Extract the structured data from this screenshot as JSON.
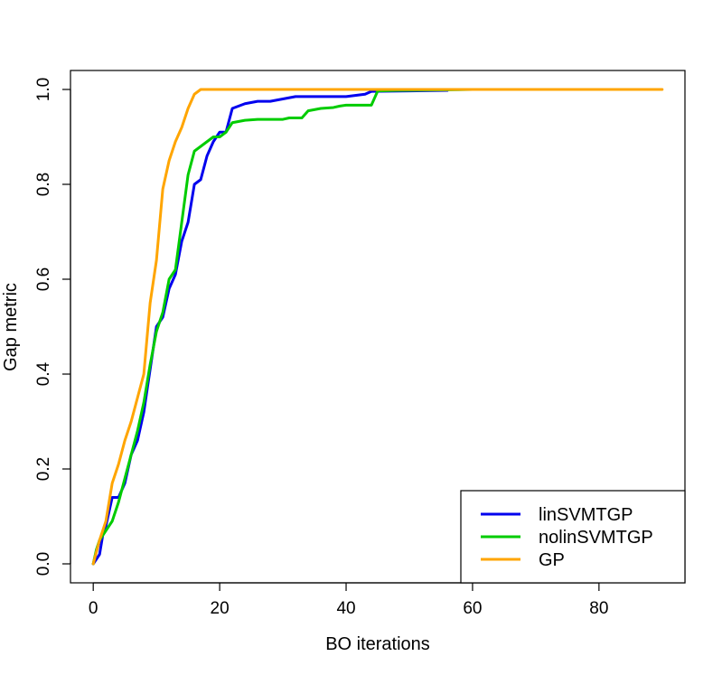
{
  "chart_data": {
    "type": "line",
    "title": "",
    "xlabel": "BO iterations",
    "ylabel": "Gap metric",
    "xlim": [
      -3.6,
      93.6
    ],
    "ylim": [
      -0.04,
      1.04
    ],
    "xticks": [
      0,
      20,
      40,
      60,
      80
    ],
    "yticks": [
      0.0,
      0.2,
      0.4,
      0.6,
      0.8,
      1.0
    ],
    "xtick_labels": [
      "0",
      "20",
      "40",
      "60",
      "80"
    ],
    "ytick_labels": [
      "0.0",
      "0.2",
      "0.4",
      "0.6",
      "0.8",
      "1.0"
    ],
    "grid": false,
    "legend_position": "bottom-right",
    "series": [
      {
        "name": "linSVMTGP",
        "color": "#0000ee",
        "points": [
          [
            0,
            0
          ],
          [
            1,
            0.02
          ],
          [
            1.5,
            0.06
          ],
          [
            2,
            0.08
          ],
          [
            3,
            0.14
          ],
          [
            4,
            0.14
          ],
          [
            5,
            0.17
          ],
          [
            6,
            0.23
          ],
          [
            7,
            0.26
          ],
          [
            8,
            0.32
          ],
          [
            9,
            0.41
          ],
          [
            10,
            0.5
          ],
          [
            11,
            0.52
          ],
          [
            12,
            0.58
          ],
          [
            13,
            0.61
          ],
          [
            14,
            0.68
          ],
          [
            15,
            0.72
          ],
          [
            16,
            0.8
          ],
          [
            17,
            0.81
          ],
          [
            18,
            0.86
          ],
          [
            19,
            0.89
          ],
          [
            20,
            0.91
          ],
          [
            21,
            0.91
          ],
          [
            22,
            0.96
          ],
          [
            23,
            0.965
          ],
          [
            24,
            0.97
          ],
          [
            26,
            0.975
          ],
          [
            28,
            0.975
          ],
          [
            30,
            0.98
          ],
          [
            32,
            0.985
          ],
          [
            34,
            0.985
          ],
          [
            40,
            0.985
          ],
          [
            43,
            0.99
          ],
          [
            44,
            0.996
          ],
          [
            50,
            0.997
          ],
          [
            56,
            0.998
          ]
        ]
      },
      {
        "name": "nolinSVMTGP",
        "color": "#00cc00",
        "points": [
          [
            0,
            0
          ],
          [
            0.5,
            0.03
          ],
          [
            1,
            0.05
          ],
          [
            2,
            0.07
          ],
          [
            3,
            0.09
          ],
          [
            4,
            0.13
          ],
          [
            5,
            0.18
          ],
          [
            6,
            0.23
          ],
          [
            7,
            0.28
          ],
          [
            8,
            0.34
          ],
          [
            9,
            0.42
          ],
          [
            10,
            0.49
          ],
          [
            11,
            0.53
          ],
          [
            12,
            0.6
          ],
          [
            13,
            0.62
          ],
          [
            14,
            0.72
          ],
          [
            15,
            0.82
          ],
          [
            16,
            0.87
          ],
          [
            17,
            0.88
          ],
          [
            18,
            0.89
          ],
          [
            19,
            0.9
          ],
          [
            20,
            0.9
          ],
          [
            21,
            0.91
          ],
          [
            22,
            0.93
          ],
          [
            24,
            0.935
          ],
          [
            26,
            0.937
          ],
          [
            28,
            0.937
          ],
          [
            30,
            0.937
          ],
          [
            31,
            0.94
          ],
          [
            33,
            0.94
          ],
          [
            34,
            0.955
          ],
          [
            36,
            0.96
          ],
          [
            38,
            0.962
          ],
          [
            39,
            0.965
          ],
          [
            40,
            0.967
          ],
          [
            44,
            0.967
          ],
          [
            45,
            0.997
          ],
          [
            48,
            0.998
          ],
          [
            55,
            0.999
          ],
          [
            60,
            1.0
          ]
        ]
      },
      {
        "name": "GP",
        "color": "#ffa500",
        "points": [
          [
            0,
            0
          ],
          [
            1,
            0.05
          ],
          [
            2,
            0.09
          ],
          [
            3,
            0.17
          ],
          [
            4,
            0.21
          ],
          [
            5,
            0.26
          ],
          [
            6,
            0.3
          ],
          [
            7,
            0.35
          ],
          [
            8,
            0.4
          ],
          [
            9,
            0.55
          ],
          [
            10,
            0.64
          ],
          [
            11,
            0.79
          ],
          [
            12,
            0.85
          ],
          [
            13,
            0.89
          ],
          [
            14,
            0.92
          ],
          [
            15,
            0.96
          ],
          [
            16,
            0.99
          ],
          [
            17,
            1.0
          ],
          [
            20,
            1.0
          ],
          [
            30,
            1.0
          ],
          [
            40,
            1.0
          ],
          [
            50,
            1.0
          ],
          [
            60,
            1.0
          ],
          [
            70,
            1.0
          ],
          [
            80,
            1.0
          ],
          [
            90,
            1.0
          ]
        ]
      }
    ]
  }
}
